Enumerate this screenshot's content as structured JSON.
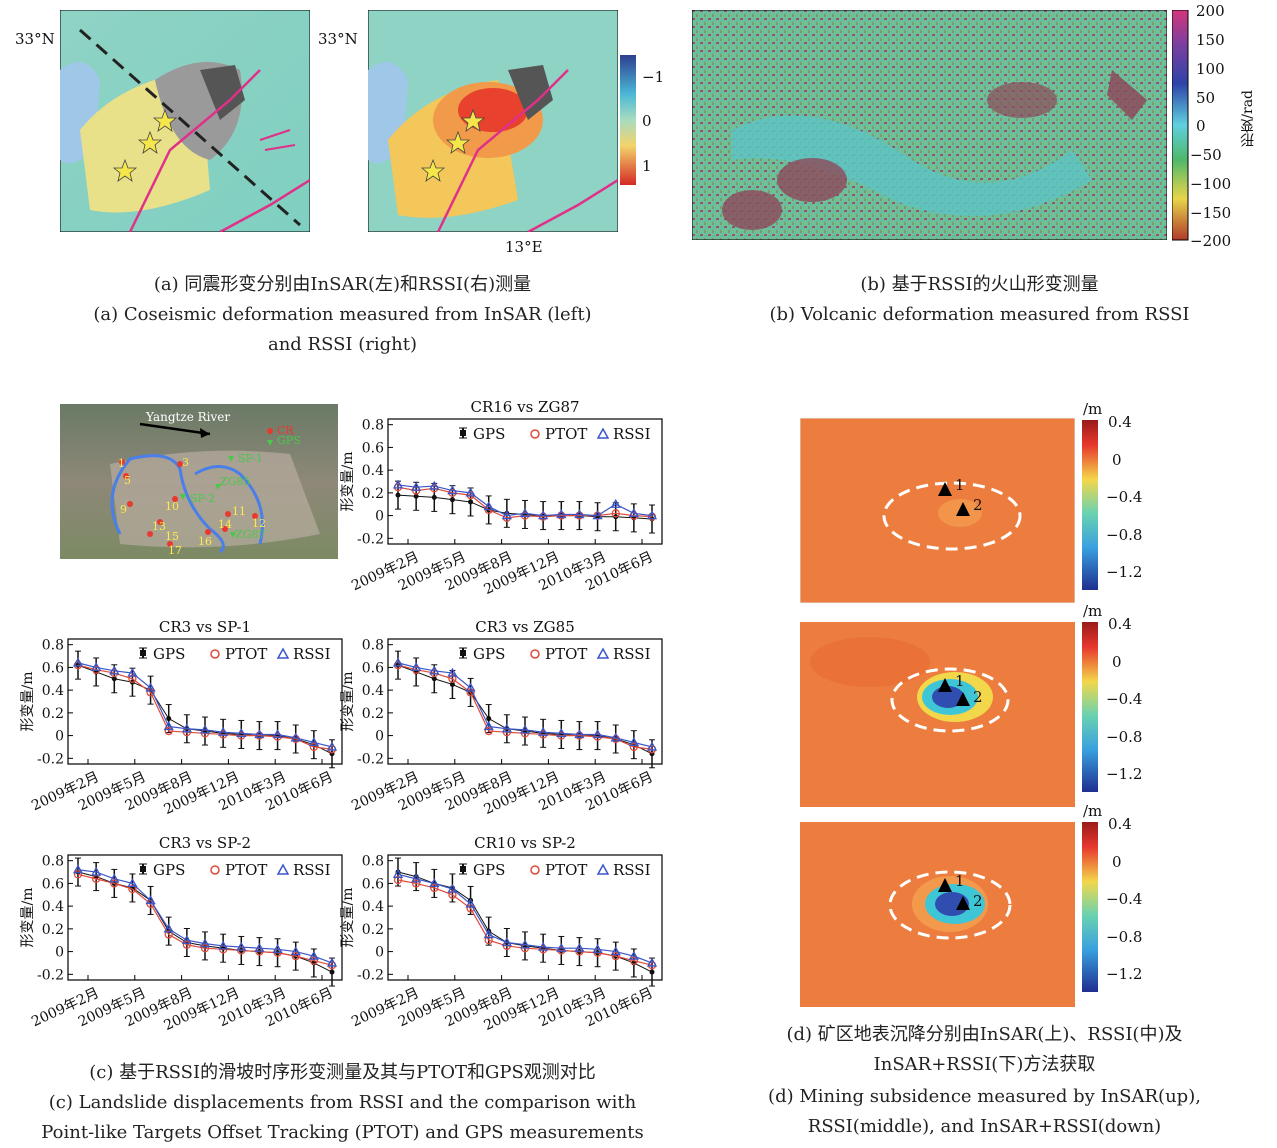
{
  "panel_a": {
    "lat_label_left": "33°N",
    "lat_label_right": "33°N",
    "lon_label": "13°E",
    "colorbar_ticks": [
      "−1",
      "0",
      "1"
    ],
    "caption_cn": "(a) 同震形变分别由InSAR(左)和RSSI(右)测量",
    "caption_en_1": "(a) Coseismic deformation measured from InSAR (left)",
    "caption_en_2": "and RSSI (right)"
  },
  "panel_b": {
    "colorbar_ticks": [
      "200",
      "150",
      "100",
      "50",
      "0",
      "−50",
      "−100",
      "−150",
      "−200"
    ],
    "colorbar_unit": "形变/rad",
    "caption_cn": "(b) 基于RSSI的火山形变测量",
    "caption_en": "(b) Volcanic deformation measured from RSSI"
  },
  "panel_c": {
    "map": {
      "river_label": "Yangtze River",
      "legend_cr": "CR",
      "legend_gps": "GPS",
      "cr_numbers": [
        "1",
        "3",
        "5",
        "9",
        "10",
        "13",
        "15",
        "17",
        "16",
        "14",
        "12",
        "11"
      ],
      "gps_names": [
        "SP-1",
        "ZG85",
        "SP-2",
        "ZG87"
      ]
    },
    "legend": {
      "gps": "GPS",
      "ptot": "PTOT",
      "rssi": "RSSI"
    },
    "ylabel": "形变量/m",
    "xticks": [
      "2009年2月",
      "2009年5月",
      "2009年8月",
      "2009年12月",
      "2010年3月",
      "2010年6月"
    ],
    "caption_cn": "(c) 基于RSSI的滑坡时序形变测量及其与PTOT和GPS观测对比",
    "caption_en_1": "(c) Landslide displacements from RSSI and the comparison with",
    "caption_en_2": "Point-like Targets Offset Tracking (PTOT) and GPS measurements"
  },
  "chart_data": [
    {
      "type": "scatter",
      "title": "CR16 vs ZG87",
      "ylabel": "形变量/m",
      "ylim": [
        -0.25,
        0.85
      ],
      "yticks": [
        -0.2,
        0,
        0.2,
        0.4,
        0.6,
        0.8
      ],
      "xticks": [
        "2009年2月",
        "2009年5月",
        "2009年8月",
        "2009年12月",
        "2010年3月",
        "2010年6月"
      ],
      "series": [
        {
          "name": "GPS",
          "values": [
            0.18,
            0.17,
            0.16,
            0.14,
            0.12,
            0.05,
            0.02,
            0.01,
            0.0,
            0.0,
            0.0,
            -0.01,
            -0.01,
            -0.02,
            -0.03
          ]
        },
        {
          "name": "PTOT",
          "values": [
            0.25,
            0.22,
            0.24,
            0.2,
            0.18,
            0.05,
            -0.02,
            0.0,
            -0.01,
            0.0,
            0.0,
            0.0,
            0.02,
            0.0,
            -0.01
          ]
        },
        {
          "name": "RSSI",
          "values": [
            0.27,
            0.25,
            0.26,
            0.22,
            0.2,
            0.08,
            0.0,
            0.02,
            0.0,
            0.01,
            0.01,
            0.0,
            0.1,
            0.02,
            0.0
          ]
        }
      ]
    },
    {
      "type": "scatter",
      "title": "CR3 vs SP-1",
      "ylabel": "形变量/m",
      "ylim": [
        -0.25,
        0.85
      ],
      "yticks": [
        -0.2,
        0,
        0.2,
        0.4,
        0.6,
        0.8
      ],
      "xticks": [
        "2009年2月",
        "2009年5月",
        "2009年8月",
        "2009年12月",
        "2010年3月",
        "2010年6月"
      ],
      "series": [
        {
          "name": "GPS",
          "values": [
            0.62,
            0.56,
            0.5,
            0.47,
            0.4,
            0.15,
            0.06,
            0.04,
            0.02,
            0.01,
            0.0,
            0.0,
            -0.03,
            -0.08,
            -0.16
          ]
        },
        {
          "name": "PTOT",
          "values": [
            0.62,
            0.58,
            0.55,
            0.5,
            0.38,
            0.04,
            0.03,
            0.02,
            0.01,
            0.0,
            0.0,
            -0.01,
            -0.03,
            -0.1,
            -0.12
          ]
        },
        {
          "name": "RSSI",
          "values": [
            0.64,
            0.6,
            0.57,
            0.55,
            0.42,
            0.08,
            0.06,
            0.05,
            0.03,
            0.02,
            0.01,
            0.01,
            -0.02,
            -0.06,
            -0.1
          ]
        }
      ]
    },
    {
      "type": "scatter",
      "title": "CR3 vs ZG85",
      "ylabel": "形变量/m",
      "ylim": [
        -0.25,
        0.85
      ],
      "yticks": [
        -0.2,
        0,
        0.2,
        0.4,
        0.6,
        0.8
      ],
      "xticks": [
        "2009年2月",
        "2009年5月",
        "2009年8月",
        "2009年12月",
        "2010年3月",
        "2010年6月"
      ],
      "series": [
        {
          "name": "GPS",
          "values": [
            0.62,
            0.56,
            0.5,
            0.45,
            0.38,
            0.15,
            0.06,
            0.04,
            0.02,
            0.01,
            0.0,
            0.0,
            -0.03,
            -0.08,
            -0.16
          ]
        },
        {
          "name": "PTOT",
          "values": [
            0.62,
            0.58,
            0.55,
            0.5,
            0.38,
            0.04,
            0.03,
            0.02,
            0.01,
            0.0,
            0.0,
            -0.01,
            -0.03,
            -0.1,
            -0.12
          ]
        },
        {
          "name": "RSSI",
          "values": [
            0.64,
            0.6,
            0.57,
            0.55,
            0.42,
            0.08,
            0.06,
            0.05,
            0.03,
            0.02,
            0.01,
            0.01,
            -0.02,
            -0.06,
            -0.1
          ]
        }
      ]
    },
    {
      "type": "scatter",
      "title": "CR3 vs SP-2",
      "ylabel": "形变量/m",
      "ylim": [
        -0.25,
        0.85
      ],
      "yticks": [
        -0.2,
        0,
        0.2,
        0.4,
        0.6,
        0.8
      ],
      "xticks": [
        "2009年2月",
        "2009年5月",
        "2009年8月",
        "2009年12月",
        "2010年3月",
        "2010年6月"
      ],
      "series": [
        {
          "name": "GPS",
          "values": [
            0.7,
            0.66,
            0.6,
            0.56,
            0.45,
            0.18,
            0.08,
            0.05,
            0.03,
            0.01,
            0.0,
            -0.01,
            -0.04,
            -0.1,
            -0.18
          ]
        },
        {
          "name": "PTOT",
          "values": [
            0.68,
            0.64,
            0.6,
            0.55,
            0.42,
            0.15,
            0.06,
            0.03,
            0.02,
            0.01,
            0.0,
            -0.01,
            -0.04,
            -0.08,
            -0.12
          ]
        },
        {
          "name": "RSSI",
          "values": [
            0.72,
            0.7,
            0.64,
            0.6,
            0.45,
            0.2,
            0.1,
            0.07,
            0.05,
            0.04,
            0.03,
            0.02,
            0.0,
            -0.04,
            -0.1
          ]
        }
      ]
    },
    {
      "type": "scatter",
      "title": "CR10 vs SP-2",
      "ylabel": "形变量/m",
      "ylim": [
        -0.25,
        0.85
      ],
      "yticks": [
        -0.2,
        0,
        0.2,
        0.4,
        0.6,
        0.8
      ],
      "xticks": [
        "2009年2月",
        "2009年5月",
        "2009年8月",
        "2009年12月",
        "2010年3月",
        "2010年6月"
      ],
      "series": [
        {
          "name": "GPS",
          "values": [
            0.7,
            0.66,
            0.6,
            0.56,
            0.45,
            0.18,
            0.08,
            0.05,
            0.03,
            0.01,
            0.0,
            -0.01,
            -0.04,
            -0.1,
            -0.18
          ]
        },
        {
          "name": "PTOT",
          "values": [
            0.63,
            0.6,
            0.56,
            0.5,
            0.38,
            0.1,
            0.05,
            0.03,
            0.02,
            0.01,
            0.0,
            -0.01,
            -0.04,
            -0.08,
            -0.12
          ]
        },
        {
          "name": "RSSI",
          "values": [
            0.68,
            0.64,
            0.6,
            0.55,
            0.42,
            0.15,
            0.08,
            0.06,
            0.04,
            0.03,
            0.03,
            0.02,
            0.0,
            -0.04,
            -0.1
          ]
        }
      ]
    }
  ],
  "panel_d": {
    "unit": "/m",
    "colorbar_ticks": [
      "0.4",
      "0",
      "−0.4",
      "−0.8",
      "−1.2"
    ],
    "point1": "1",
    "point2": "2",
    "caption_cn_1": "(d) 矿区地表沉降分别由InSAR(上)、RSSI(中)及",
    "caption_cn_2": "InSAR+RSSI(下)方法获取",
    "caption_en_1": "(d) Mining subsidence measured by InSAR(up),",
    "caption_en_2": "RSSI(middle), and InSAR+RSSI(down)"
  }
}
